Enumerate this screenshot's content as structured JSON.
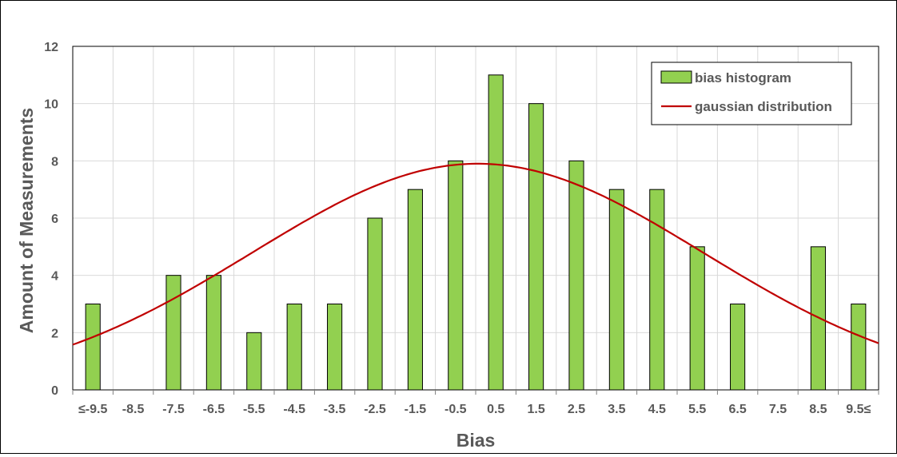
{
  "chart_data": {
    "type": "bar",
    "xlabel": "Bias",
    "ylabel": "Amount of Measurements",
    "ylim": [
      0,
      12
    ],
    "yticks": [
      0,
      2,
      4,
      6,
      8,
      10,
      12
    ],
    "grid": true,
    "legend_position": "top-right",
    "categories": [
      "≤-9.5",
      "-8.5",
      "-7.5",
      "-6.5",
      "-5.5",
      "-4.5",
      "-3.5",
      "-2.5",
      "-1.5",
      "-0.5",
      "0.5",
      "1.5",
      "2.5",
      "3.5",
      "4.5",
      "5.5",
      "6.5",
      "7.5",
      "8.5",
      "9.5≤"
    ],
    "series": [
      {
        "name": "bias histogram",
        "kind": "bar",
        "color": "#92D050",
        "values": [
          3,
          0,
          4,
          4,
          2,
          3,
          3,
          6,
          7,
          8,
          11,
          10,
          8,
          7,
          7,
          5,
          3,
          0,
          5,
          3
        ]
      },
      {
        "name": "gaussian distribution",
        "kind": "line",
        "color": "#C00000",
        "mean": 0.05,
        "sd": 5.6,
        "peak": 7.9
      }
    ]
  }
}
